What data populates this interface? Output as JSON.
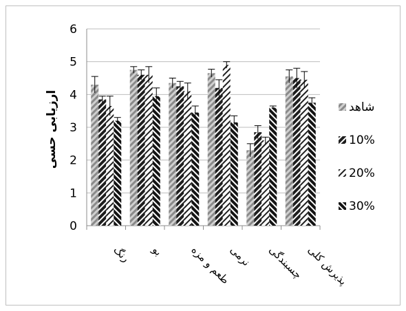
{
  "chart_data": {
    "type": "bar",
    "ylabel": "ارزیابی حسی",
    "ylim": [
      0,
      6
    ],
    "yticks": [
      0,
      1,
      2,
      3,
      4,
      5,
      6
    ],
    "grid": true,
    "legend_position": "right",
    "categories": [
      "رنگ",
      "بو",
      "طعم و مزه",
      "نرمی",
      "چسبندگی",
      "پذیرش کلی"
    ],
    "series": [
      {
        "name": "شاهد",
        "color": "#9a9a9a",
        "values": [
          4.3,
          4.75,
          4.35,
          4.65,
          2.3,
          4.55
        ],
        "errors": [
          0.25,
          0.1,
          0.15,
          0.12,
          0.2,
          0.2
        ]
      },
      {
        "name": "10%",
        "color": "#2b2b2b",
        "values": [
          3.85,
          4.6,
          4.25,
          4.2,
          2.85,
          4.5
        ],
        "errors": [
          0.1,
          0.15,
          0.15,
          0.25,
          0.2,
          0.3
        ]
      },
      {
        "name": "20%",
        "color": "#ffffff",
        "values": [
          3.65,
          4.6,
          4.1,
          4.9,
          2.6,
          4.45
        ],
        "errors": [
          0.3,
          0.25,
          0.25,
          0.1,
          0.1,
          0.25
        ]
      },
      {
        "name": "30%",
        "color": "#1a1a1a",
        "values": [
          3.2,
          3.95,
          3.45,
          3.15,
          3.6,
          3.75
        ],
        "errors": [
          0.1,
          0.25,
          0.2,
          0.2,
          0.05,
          0.15
        ]
      }
    ]
  }
}
